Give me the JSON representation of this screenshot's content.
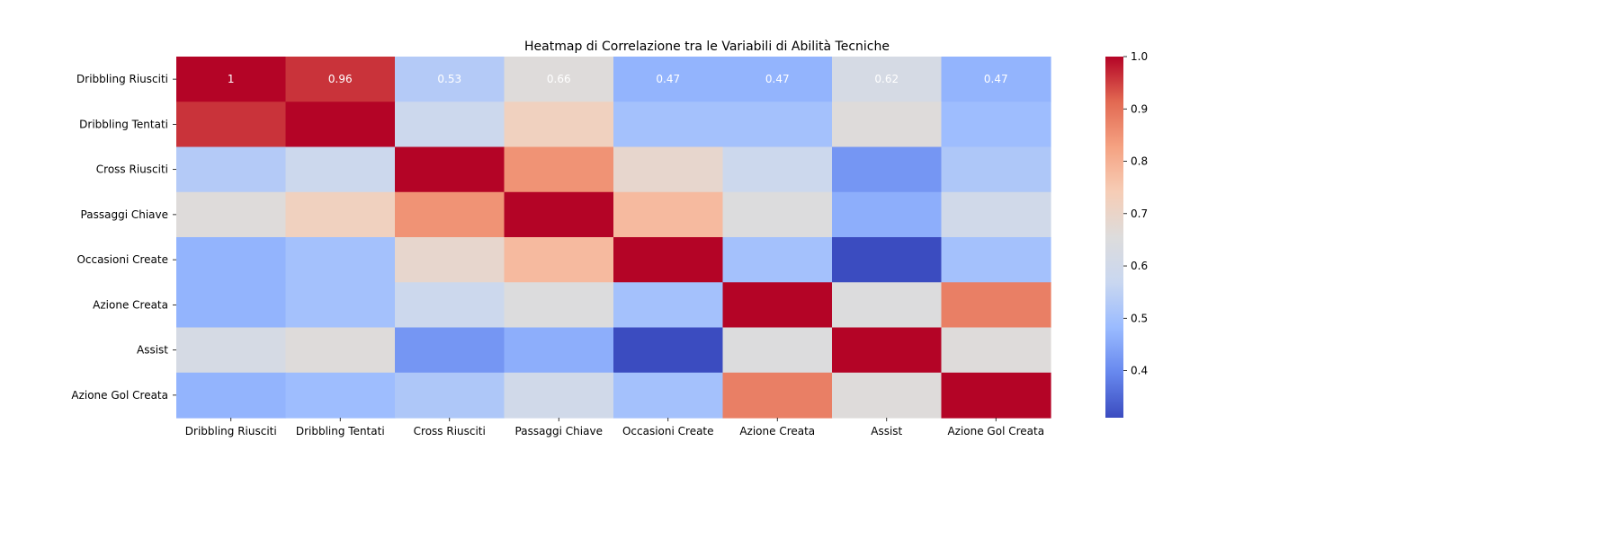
{
  "chart_data": {
    "type": "heatmap",
    "title": "Heatmap di Correlazione tra le Variabili di Abilità Tecniche",
    "xlabel": "",
    "ylabel": "",
    "row_labels": [
      "Dribbling Riusciti",
      "Dribbling Tentati",
      "Cross Riusciti",
      "Passaggi Chiave",
      "Occasioni Create",
      "Azione Creata",
      "Assist",
      "Azione Gol Creata"
    ],
    "col_labels": [
      "Dribbling Riusciti",
      "Dribbling Tentati",
      "Cross Riusciti",
      "Passaggi Chiave",
      "Occasioni Create",
      "Azione Creata",
      "Assist",
      "Azione Gol Creata"
    ],
    "values": [
      [
        1.0,
        0.96,
        0.53,
        0.66,
        0.47,
        0.47,
        0.62,
        0.47
      ],
      [
        0.96,
        1.0,
        0.58,
        0.72,
        0.5,
        0.5,
        0.66,
        0.49
      ],
      [
        0.53,
        0.58,
        1.0,
        0.85,
        0.69,
        0.58,
        0.42,
        0.52
      ],
      [
        0.66,
        0.72,
        0.85,
        1.0,
        0.78,
        0.65,
        0.46,
        0.6
      ],
      [
        0.47,
        0.5,
        0.69,
        0.78,
        1.0,
        0.5,
        0.31,
        0.5
      ],
      [
        0.47,
        0.5,
        0.58,
        0.65,
        0.5,
        1.0,
        0.65,
        0.88
      ],
      [
        0.62,
        0.66,
        0.42,
        0.46,
        0.31,
        0.65,
        1.0,
        0.66
      ],
      [
        0.47,
        0.49,
        0.52,
        0.6,
        0.5,
        0.88,
        0.66,
        1.0
      ]
    ],
    "annotated_row": 0,
    "annotations": [
      "1",
      "0.96",
      "0.53",
      "0.66",
      "0.47",
      "0.47",
      "0.62",
      "0.47"
    ],
    "colormap": "coolwarm",
    "colormap_stops": [
      "#3b4cc0",
      "#6788ee",
      "#9abbff",
      "#c9d7f0",
      "#dddcdc",
      "#f6cdb6",
      "#f5a282",
      "#e26952",
      "#b40426"
    ],
    "vmin": 0.31,
    "vmax": 1.0,
    "colorbar_ticks": [
      "0.4",
      "0.5",
      "0.6",
      "0.7",
      "0.8",
      "0.9",
      "1.0"
    ],
    "legend": "colorbar-right",
    "grid": false
  }
}
